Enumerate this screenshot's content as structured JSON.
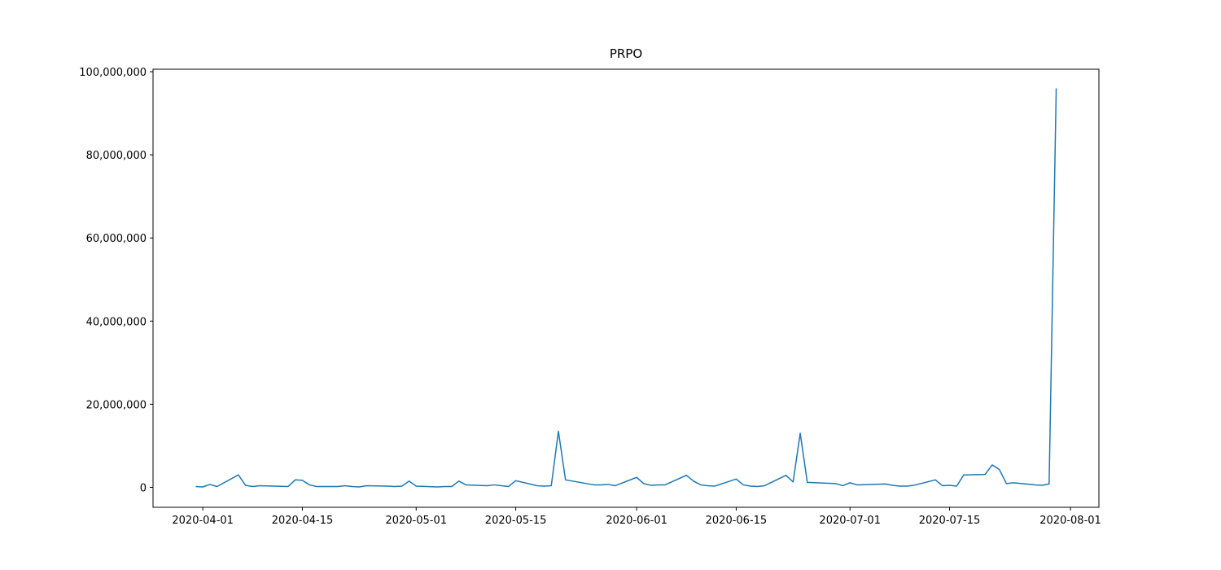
{
  "chart_data": {
    "type": "line",
    "title": "PRPO",
    "x": [
      "2020-03-31",
      "2020-04-01",
      "2020-04-02",
      "2020-04-03",
      "2020-04-06",
      "2020-04-07",
      "2020-04-08",
      "2020-04-09",
      "2020-04-13",
      "2020-04-14",
      "2020-04-15",
      "2020-04-16",
      "2020-04-17",
      "2020-04-20",
      "2020-04-21",
      "2020-04-22",
      "2020-04-23",
      "2020-04-24",
      "2020-04-27",
      "2020-04-28",
      "2020-04-29",
      "2020-04-30",
      "2020-05-01",
      "2020-05-04",
      "2020-05-05",
      "2020-05-06",
      "2020-05-07",
      "2020-05-08",
      "2020-05-11",
      "2020-05-12",
      "2020-05-13",
      "2020-05-14",
      "2020-05-15",
      "2020-05-18",
      "2020-05-19",
      "2020-05-20",
      "2020-05-21",
      "2020-05-22",
      "2020-05-26",
      "2020-05-27",
      "2020-05-28",
      "2020-05-29",
      "2020-06-01",
      "2020-06-02",
      "2020-06-03",
      "2020-06-04",
      "2020-06-05",
      "2020-06-08",
      "2020-06-09",
      "2020-06-10",
      "2020-06-11",
      "2020-06-12",
      "2020-06-15",
      "2020-06-16",
      "2020-06-17",
      "2020-06-18",
      "2020-06-19",
      "2020-06-22",
      "2020-06-23",
      "2020-06-24",
      "2020-06-25",
      "2020-06-29",
      "2020-06-30",
      "2020-07-01",
      "2020-07-02",
      "2020-07-06",
      "2020-07-07",
      "2020-07-08",
      "2020-07-09",
      "2020-07-10",
      "2020-07-13",
      "2020-07-14",
      "2020-07-15",
      "2020-07-16",
      "2020-07-17",
      "2020-07-20",
      "2020-07-21",
      "2020-07-22",
      "2020-07-23",
      "2020-07-24",
      "2020-07-27",
      "2020-07-28",
      "2020-07-29",
      "2020-07-30"
    ],
    "series": [
      {
        "name": "PRPO",
        "color": "#1f77b4",
        "values": [
          200000,
          100000,
          700000,
          200000,
          3000000,
          500000,
          200000,
          400000,
          200000,
          1800000,
          1700000,
          600000,
          200000,
          200000,
          400000,
          200000,
          100000,
          400000,
          300000,
          200000,
          300000,
          1500000,
          300000,
          100000,
          200000,
          200000,
          1500000,
          600000,
          400000,
          600000,
          400000,
          200000,
          1600000,
          400000,
          300000,
          400000,
          13500000,
          1800000,
          600000,
          600000,
          700000,
          400000,
          2400000,
          900000,
          500000,
          600000,
          600000,
          2900000,
          1500000,
          600000,
          400000,
          300000,
          2000000,
          600000,
          300000,
          200000,
          400000,
          2900000,
          1300000,
          13000000,
          1200000,
          900000,
          400000,
          1100000,
          600000,
          800000,
          500000,
          300000,
          300000,
          500000,
          1800000,
          400000,
          500000,
          300000,
          3000000,
          3100000,
          5400000,
          4300000,
          900000,
          1100000,
          600000,
          500000,
          800000,
          96000000
        ]
      }
    ],
    "xlim": [
      "2020-03-25",
      "2020-08-05"
    ],
    "xticks": [
      "2020-04-01",
      "2020-04-15",
      "2020-05-01",
      "2020-05-15",
      "2020-06-01",
      "2020-06-15",
      "2020-07-01",
      "2020-07-15",
      "2020-08-01"
    ],
    "ylim": [
      -4800000,
      100600000
    ],
    "yticks": [
      0,
      {
        "value": 20000000,
        "label": "20,000,000"
      },
      {
        "value": 40000000,
        "label": "40,000,000"
      },
      {
        "value": 60000000,
        "label": "60,000,000"
      },
      {
        "value": 80000000,
        "label": "80,000,000"
      },
      {
        "value": 100000000,
        "label": "100,000,000"
      }
    ],
    "grid": false
  }
}
